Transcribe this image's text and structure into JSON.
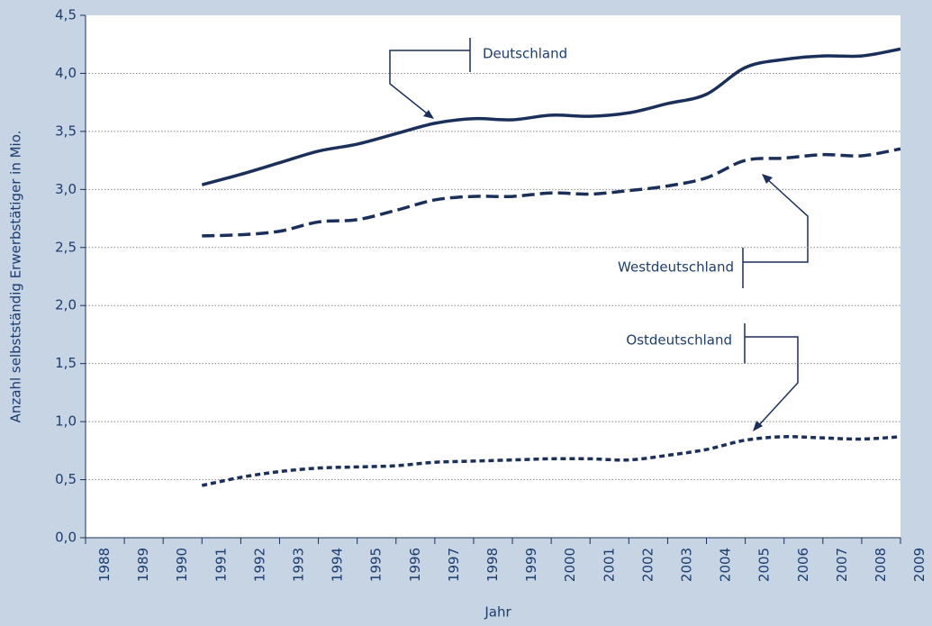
{
  "chart_data": {
    "type": "line",
    "x_label": "Jahr",
    "y_label": "Anzahl selbstständig Erwerbstätiger in Mio.",
    "x": [
      1991,
      1992,
      1993,
      1994,
      1995,
      1996,
      1997,
      1998,
      1999,
      2000,
      2001,
      2002,
      2003,
      2004,
      2005,
      2006,
      2007,
      2008,
      2009
    ],
    "series": [
      {
        "name": "Deutschland",
        "color": "#1a2f5a",
        "style": "solid",
        "values": [
          3.04,
          3.13,
          3.23,
          3.33,
          3.39,
          3.48,
          3.57,
          3.61,
          3.6,
          3.64,
          3.63,
          3.66,
          3.74,
          3.82,
          4.05,
          4.12,
          4.15,
          4.15,
          4.21
        ]
      },
      {
        "name": "Westdeutschland",
        "color": "#1a2f5a",
        "style": "dashed",
        "values": [
          2.6,
          2.61,
          2.64,
          2.72,
          2.74,
          2.82,
          2.91,
          2.94,
          2.94,
          2.97,
          2.96,
          2.99,
          3.03,
          3.1,
          3.25,
          3.27,
          3.3,
          3.29,
          3.35
        ]
      },
      {
        "name": "Ostdeutschland",
        "color": "#1a2f5a",
        "style": "dotted",
        "values": [
          0.45,
          0.52,
          0.57,
          0.6,
          0.61,
          0.62,
          0.65,
          0.66,
          0.67,
          0.68,
          0.68,
          0.67,
          0.71,
          0.76,
          0.84,
          0.87,
          0.86,
          0.85,
          0.87
        ]
      }
    ],
    "xlim": [
      1988,
      2009
    ],
    "xticks": [
      1988,
      1989,
      1990,
      1991,
      1992,
      1993,
      1994,
      1995,
      1996,
      1997,
      1998,
      1999,
      2000,
      2001,
      2002,
      2003,
      2004,
      2005,
      2006,
      2007,
      2008,
      2009
    ],
    "ylim": [
      0,
      4.5
    ],
    "yticks": [
      {
        "value": 0,
        "label": "0,0"
      },
      {
        "value": 0.5,
        "label": "0,5"
      },
      {
        "value": 1,
        "label": "1,0"
      },
      {
        "value": 1.5,
        "label": "1,5"
      },
      {
        "value": 2,
        "label": "2,0"
      },
      {
        "value": 2.5,
        "label": "2,5"
      },
      {
        "value": 3,
        "label": "3,0"
      },
      {
        "value": 3.5,
        "label": "3,5"
      },
      {
        "value": 4,
        "label": "4,0"
      },
      {
        "value": 4.5,
        "label": "4,5"
      }
    ],
    "grid": true
  }
}
